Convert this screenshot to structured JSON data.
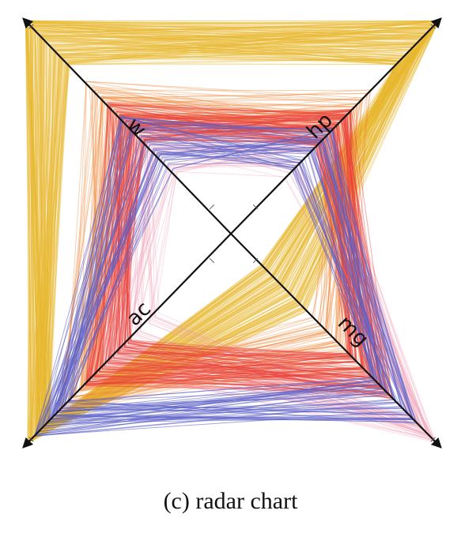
{
  "figure": {
    "caption": "(c) radar chart"
  },
  "chart_data": {
    "type": "radar",
    "axes": [
      "w",
      "hp",
      "ac",
      "mg"
    ],
    "axis_layout": "X-shaped: w top-left, hp top-right, ac bottom-left, mg bottom-right",
    "series_encoding": "one polyline per record connecting its normalized value on each of the four axes",
    "groups": [
      {
        "color": "#e8b82e"
      },
      {
        "color": "#e8413a"
      },
      {
        "color": "#f08a3c"
      },
      {
        "color": "#5b5fc7"
      },
      {
        "color": "#f2a0b8"
      }
    ],
    "series_count": 420,
    "title": "",
    "xlabel": "",
    "ylabel": "",
    "grid": false,
    "legend": "none"
  }
}
